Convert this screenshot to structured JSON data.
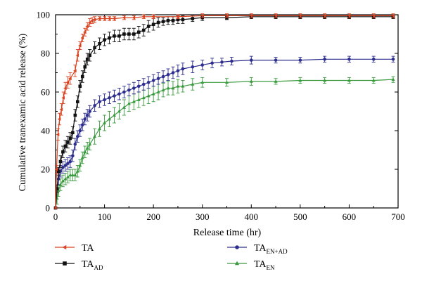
{
  "chart_data": {
    "type": "line",
    "title": "",
    "xlabel": "Release time (hr)",
    "ylabel": "Cumulative tranexamic acid release (%)",
    "xlim": [
      0,
      700
    ],
    "ylim": [
      0,
      100
    ],
    "xticks": [
      "0",
      "100",
      "200",
      "300",
      "400",
      "500",
      "600",
      "700"
    ],
    "yticks": [
      "0",
      "20",
      "40",
      "60",
      "80",
      "100"
    ],
    "grid": false,
    "legend_position": "bottom",
    "series": [
      {
        "name": "TA",
        "legend_main": "TA",
        "legend_sub": "",
        "color": "#d9421f",
        "marker": "triangle-left",
        "x": [
          0,
          2,
          5,
          8,
          12,
          16,
          20,
          25,
          30,
          40,
          45,
          50,
          55,
          60,
          65,
          70,
          75,
          80,
          90,
          100,
          110,
          120,
          140,
          160,
          180,
          200,
          250,
          300,
          350,
          400,
          450,
          500,
          550,
          600,
          650,
          690
        ],
        "y": [
          0,
          20,
          38,
          46,
          51,
          57,
          62,
          65,
          67,
          71,
          79,
          84,
          88,
          91,
          94,
          96,
          97,
          97.5,
          98,
          98,
          98,
          98,
          98.5,
          98.5,
          99,
          99,
          99,
          99.5,
          99.5,
          99.5,
          99.5,
          99.5,
          99.5,
          99.5,
          99.5,
          99.5
        ],
        "err": [
          0,
          2,
          3,
          3,
          3,
          3,
          3,
          3,
          3,
          3,
          3,
          2,
          2,
          2,
          2,
          2,
          1.5,
          1.5,
          1,
          1,
          1,
          1,
          1,
          1,
          1,
          1,
          1,
          1,
          1,
          1,
          1,
          1,
          1,
          1,
          1,
          1
        ]
      },
      {
        "name": "TA_AD",
        "legend_main": "TA",
        "legend_sub": "AD",
        "color": "#111111",
        "marker": "square",
        "x": [
          0,
          3,
          6,
          10,
          15,
          20,
          25,
          30,
          35,
          40,
          45,
          50,
          55,
          60,
          65,
          70,
          80,
          90,
          100,
          110,
          120,
          130,
          140,
          150,
          160,
          170,
          180,
          190,
          200,
          210,
          220,
          230,
          240,
          250,
          260,
          280,
          300,
          350,
          400,
          450,
          500,
          550,
          600,
          650,
          690
        ],
        "y": [
          0,
          10,
          19,
          24,
          29,
          32,
          34,
          36,
          39,
          48,
          55,
          63,
          68,
          73,
          77,
          79,
          83,
          85,
          87,
          88,
          89,
          89,
          90,
          90,
          90,
          91,
          92,
          94,
          95,
          96,
          96.5,
          97,
          97,
          97.5,
          97.5,
          98,
          98.5,
          98.5,
          99,
          99,
          99,
          99,
          99,
          99,
          99
        ],
        "err": [
          0,
          2,
          2,
          3,
          3,
          3,
          3,
          3,
          3,
          3,
          3,
          3,
          3,
          3,
          3,
          3,
          3,
          3,
          3,
          3,
          3,
          3,
          3,
          3,
          3,
          3,
          3,
          3,
          3,
          2.5,
          2,
          2,
          2,
          2,
          2,
          1.5,
          1.5,
          1,
          1,
          1,
          1,
          1,
          1,
          1,
          1
        ]
      },
      {
        "name": "TA_EN+AD",
        "legend_main": "TA",
        "legend_sub": "EN+AD",
        "color": "#2c2d8e",
        "marker": "circle",
        "x": [
          0,
          3,
          6,
          10,
          15,
          20,
          25,
          30,
          35,
          40,
          45,
          50,
          55,
          60,
          65,
          70,
          80,
          90,
          100,
          110,
          120,
          130,
          140,
          150,
          160,
          170,
          180,
          190,
          200,
          210,
          220,
          230,
          240,
          250,
          260,
          280,
          300,
          320,
          340,
          360,
          400,
          450,
          500,
          550,
          600,
          650,
          690
        ],
        "y": [
          0,
          10,
          15,
          19,
          21,
          22,
          23,
          24,
          27,
          33,
          37,
          40,
          43,
          46,
          48,
          50,
          53,
          55,
          56,
          57,
          58,
          59,
          60,
          61,
          62,
          63,
          64,
          65,
          66,
          67,
          68,
          69,
          70,
          71,
          72,
          73,
          74,
          75,
          75.5,
          76,
          76.5,
          76.5,
          76.5,
          77,
          77,
          77,
          77
        ],
        "err": [
          0,
          2,
          3,
          3,
          3,
          3,
          3,
          3,
          3,
          3,
          3,
          3,
          3,
          3,
          3,
          3,
          3,
          3,
          3,
          3,
          3,
          3,
          3,
          3,
          3,
          3,
          3,
          3,
          3,
          3,
          3,
          3,
          3,
          3,
          3,
          3,
          2.5,
          2.5,
          2,
          2,
          2,
          1.5,
          1.5,
          1.5,
          1.5,
          1.5,
          1.5
        ]
      },
      {
        "name": "TA_EN",
        "legend_main": "TA",
        "legend_sub": "EN",
        "color": "#3a9b3e",
        "marker": "triangle-up",
        "x": [
          0,
          3,
          6,
          10,
          15,
          20,
          25,
          30,
          35,
          40,
          45,
          50,
          55,
          60,
          65,
          70,
          80,
          90,
          100,
          110,
          120,
          130,
          140,
          150,
          160,
          170,
          180,
          190,
          200,
          210,
          220,
          230,
          240,
          250,
          260,
          280,
          300,
          350,
          400,
          450,
          500,
          550,
          600,
          650,
          690
        ],
        "y": [
          0,
          5,
          9,
          12,
          14,
          15,
          16,
          17,
          17,
          17,
          19,
          22,
          26,
          29,
          31,
          33,
          37,
          41,
          44,
          46,
          48,
          50,
          52,
          54,
          55,
          56,
          57,
          58,
          59,
          60,
          61,
          62,
          62,
          63,
          63,
          64,
          65,
          65,
          65.5,
          65.5,
          66,
          66,
          66,
          66,
          66.5
        ],
        "err": [
          0,
          3,
          3,
          3,
          3,
          3,
          3,
          3,
          3,
          3,
          3,
          3,
          3,
          3,
          3,
          3,
          4,
          4,
          4,
          4,
          4,
          4,
          4,
          4,
          4,
          4,
          4,
          4,
          4,
          4,
          3.5,
          3.5,
          3.5,
          3.5,
          3,
          3,
          2.5,
          2,
          2,
          1.5,
          1.5,
          1.5,
          1.5,
          1.5,
          1.5
        ]
      }
    ]
  }
}
